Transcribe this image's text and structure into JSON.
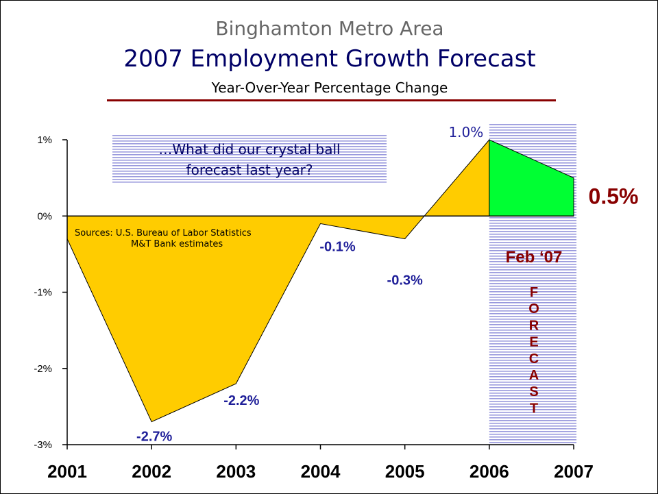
{
  "chart_data": {
    "type": "area",
    "supertitle": "Binghamton Metro Area",
    "title": "2007 Employment Growth Forecast",
    "subtitle": "Year-Over-Year Percentage Change",
    "x": [
      "2001",
      "2002",
      "2003",
      "2004",
      "2005",
      "2006",
      "2007"
    ],
    "values": [
      -0.3,
      -2.7,
      -2.2,
      -0.1,
      -0.3,
      1.0,
      0.5
    ],
    "data_labels": [
      "",
      "-2.7%",
      "-2.2%",
      "-0.1%",
      "-0.3%",
      "1.0%",
      "0.5%"
    ],
    "forecast_from": "2006",
    "ylim": [
      -3,
      1
    ],
    "yticks": [
      {
        "value": 1,
        "label": "1%"
      },
      {
        "value": 0,
        "label": "0%"
      },
      {
        "value": -1,
        "label": "-1%"
      },
      {
        "value": -2,
        "label": "-2%"
      },
      {
        "value": -3,
        "label": "-3%"
      }
    ],
    "question_box": [
      "…What did our crystal ball",
      "forecast last year?"
    ],
    "sources": [
      "Sources:  U.S. Bureau of Labor Statistics",
      "M&T Bank estimates"
    ],
    "forecast_date": "Feb ‘07",
    "forecast_word": "FORECAST",
    "colors": {
      "actual_fill": "#ffcc00",
      "forecast_fill": "#00ff33",
      "title": "#000066",
      "supertitle": "#666666",
      "accent": "#880000",
      "label": "#1f1f99",
      "forecast_stripe": "#9999dd"
    }
  }
}
